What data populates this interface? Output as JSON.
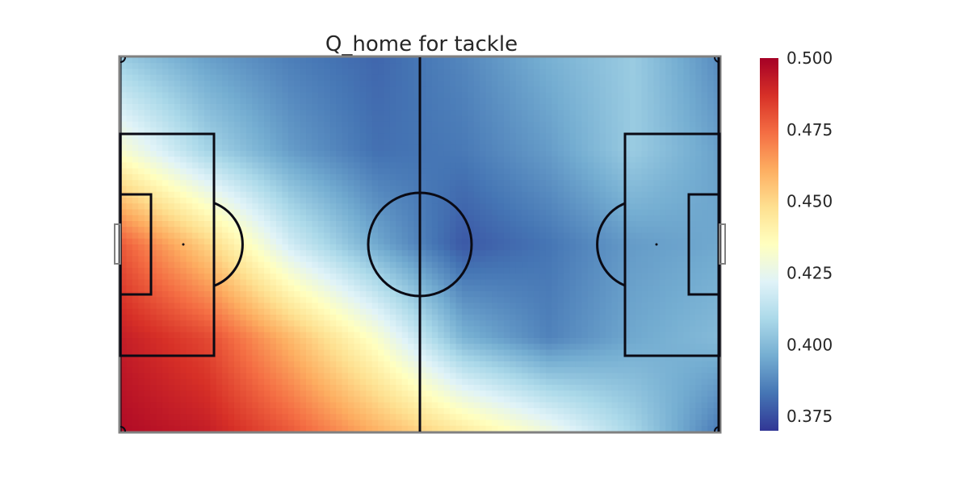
{
  "chart_data": {
    "type": "heatmap",
    "title": "Q_home for tackle",
    "xlabel": "",
    "ylabel": "",
    "colormap": "RdYlBu_r",
    "vmin": 0.37,
    "vmax": 0.5,
    "colorbar": {
      "ticks": [
        0.375,
        0.4,
        0.425,
        0.45,
        0.475,
        0.5
      ],
      "tick_labels": [
        "0.375",
        "0.400",
        "0.425",
        "0.450",
        "0.475",
        "0.500"
      ]
    },
    "grid_size": [
      8,
      5
    ],
    "grid_values": [
      [
        0.405,
        0.393,
        0.385,
        0.38,
        0.387,
        0.397,
        0.405,
        0.388
      ],
      [
        0.432,
        0.408,
        0.392,
        0.382,
        0.384,
        0.392,
        0.405,
        0.393
      ],
      [
        0.478,
        0.452,
        0.418,
        0.395,
        0.377,
        0.383,
        0.392,
        0.395
      ],
      [
        0.492,
        0.482,
        0.458,
        0.432,
        0.398,
        0.386,
        0.395,
        0.4
      ],
      [
        0.497,
        0.492,
        0.478,
        0.46,
        0.444,
        0.428,
        0.408,
        0.384
      ]
    ],
    "pitch_markings": true,
    "grid": false
  },
  "colors": {
    "pitch_lines": "#0a0a14",
    "pitch_border": "#808080",
    "text": "#262626"
  }
}
